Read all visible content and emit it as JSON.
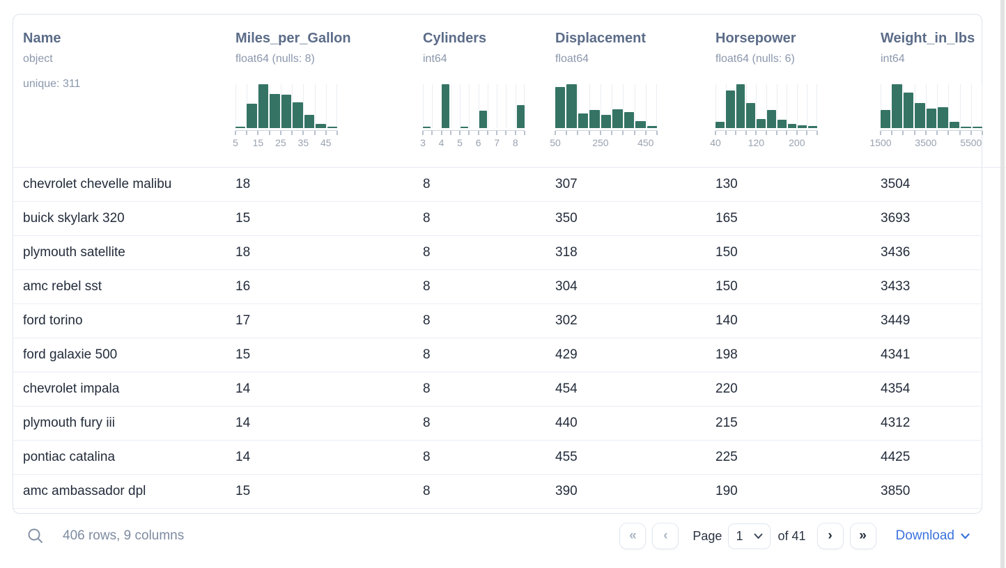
{
  "table": {
    "columns": [
      {
        "name": "Name",
        "type": "object",
        "extra": "unique: 311",
        "histogram": null
      },
      {
        "name": "Miles_per_Gallon",
        "type": "float64 (nulls: 8)",
        "histogram": {
          "type": "bar",
          "bar_heights_pct": [
            2,
            55,
            100,
            78,
            77,
            59,
            30,
            10,
            2
          ],
          "tick_labels": [
            {
              "text": "5",
              "edge": 0
            },
            {
              "text": "15",
              "edge": 2
            },
            {
              "text": "25",
              "edge": 4
            },
            {
              "text": "35",
              "edge": 6
            },
            {
              "text": "45",
              "edge": 8
            }
          ]
        }
      },
      {
        "name": "Cylinders",
        "type": "int64",
        "histogram": {
          "type": "bar",
          "bar_heights_pct": [
            3,
            0,
            100,
            0,
            2,
            0,
            40,
            0,
            0,
            0,
            52
          ],
          "tick_labels": [
            {
              "text": "3",
              "edge": 0
            },
            {
              "text": "4",
              "edge": 2
            },
            {
              "text": "5",
              "edge": 4
            },
            {
              "text": "6",
              "edge": 6
            },
            {
              "text": "7",
              "edge": 8
            },
            {
              "text": "8",
              "edge": 10
            }
          ]
        }
      },
      {
        "name": "Displacement",
        "type": "float64",
        "histogram": {
          "type": "bar",
          "bar_heights_pct": [
            93,
            100,
            34,
            41,
            30,
            43,
            37,
            16,
            5
          ],
          "tick_labels": [
            {
              "text": "50",
              "edge": 0
            },
            {
              "text": "250",
              "edge": 4
            },
            {
              "text": "450",
              "edge": 8
            }
          ]
        }
      },
      {
        "name": "Horsepower",
        "type": "float64 (nulls: 6)",
        "histogram": {
          "type": "bar",
          "bar_heights_pct": [
            15,
            86,
            100,
            57,
            20,
            42,
            19,
            10,
            6,
            5
          ],
          "tick_labels": [
            {
              "text": "40",
              "edge": 0
            },
            {
              "text": "120",
              "edge": 4
            },
            {
              "text": "200",
              "edge": 8
            }
          ]
        }
      },
      {
        "name": "Weight_in_lbs",
        "type": "int64",
        "histogram": {
          "type": "bar",
          "bar_heights_pct": [
            42,
            100,
            81,
            57,
            45,
            48,
            15,
            2,
            1
          ],
          "tick_labels": [
            {
              "text": "1500",
              "edge": 0
            },
            {
              "text": "3500",
              "edge": 4
            },
            {
              "text": "5500",
              "edge": 8
            }
          ]
        }
      }
    ],
    "rows": [
      [
        "chevrolet chevelle malibu",
        "18",
        "8",
        "307",
        "130",
        "3504"
      ],
      [
        "buick skylark 320",
        "15",
        "8",
        "350",
        "165",
        "3693"
      ],
      [
        "plymouth satellite",
        "18",
        "8",
        "318",
        "150",
        "3436"
      ],
      [
        "amc rebel sst",
        "16",
        "8",
        "304",
        "150",
        "3433"
      ],
      [
        "ford torino",
        "17",
        "8",
        "302",
        "140",
        "3449"
      ],
      [
        "ford galaxie 500",
        "15",
        "8",
        "429",
        "198",
        "4341"
      ],
      [
        "chevrolet impala",
        "14",
        "8",
        "454",
        "220",
        "4354"
      ],
      [
        "plymouth fury iii",
        "14",
        "8",
        "440",
        "215",
        "4312"
      ],
      [
        "pontiac catalina",
        "14",
        "8",
        "455",
        "225",
        "4425"
      ],
      [
        "amc ambassador dpl",
        "15",
        "8",
        "390",
        "190",
        "3850"
      ]
    ]
  },
  "footer": {
    "summary": "406 rows, 9 columns",
    "page_label": "Page",
    "page_value": "1",
    "of_label": "of 41",
    "download_label": "Download",
    "buttons": {
      "first": "«",
      "prev": "‹",
      "next": "›",
      "last": "»"
    }
  },
  "colors": {
    "histogram_bar": "#357465",
    "header_text": "#5b6c88",
    "muted_text": "#8b97ac",
    "row_text": "#232c3b",
    "accent_blue": "#3b73dd"
  }
}
